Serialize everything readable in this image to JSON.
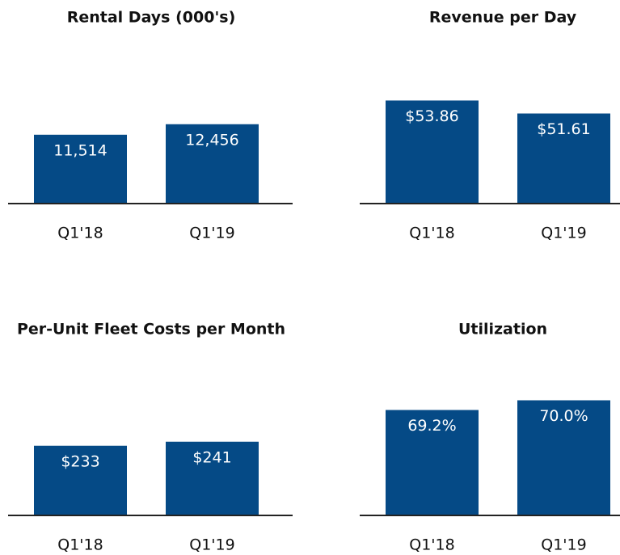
{
  "chart_data": [
    {
      "type": "bar",
      "title": "Rental Days (000's)",
      "categories": [
        "Q1'18",
        "Q1'19"
      ],
      "values": [
        11514,
        12456
      ],
      "value_labels": [
        "11,514",
        "12,456"
      ],
      "color": "#054a86",
      "ylim": [
        5350,
        16200
      ]
    },
    {
      "type": "bar",
      "title": "Revenue per Day",
      "categories": [
        "Q1'18",
        "Q1'19"
      ],
      "values": [
        53.86,
        51.61
      ],
      "value_labels": [
        "$53.86",
        "$51.61"
      ],
      "color": "#054a86",
      "ylim": [
        36,
        57
      ]
    },
    {
      "type": "bar",
      "title": "Per-Unit Fleet Costs per Month",
      "categories": [
        "Q1'18",
        "Q1'19"
      ],
      "values": [
        233,
        241
      ],
      "value_labels": [
        "$233",
        "$241"
      ],
      "color": "#054a86",
      "ylim": [
        95,
        335
      ]
    },
    {
      "type": "bar",
      "title": "Utilization",
      "categories": [
        "Q1'18",
        "Q1'19"
      ],
      "values": [
        69.2,
        70.0
      ],
      "value_labels": [
        "69.2%",
        "70.0%"
      ],
      "color": "#054a86",
      "ylim": [
        60.5,
        70.5
      ]
    }
  ]
}
